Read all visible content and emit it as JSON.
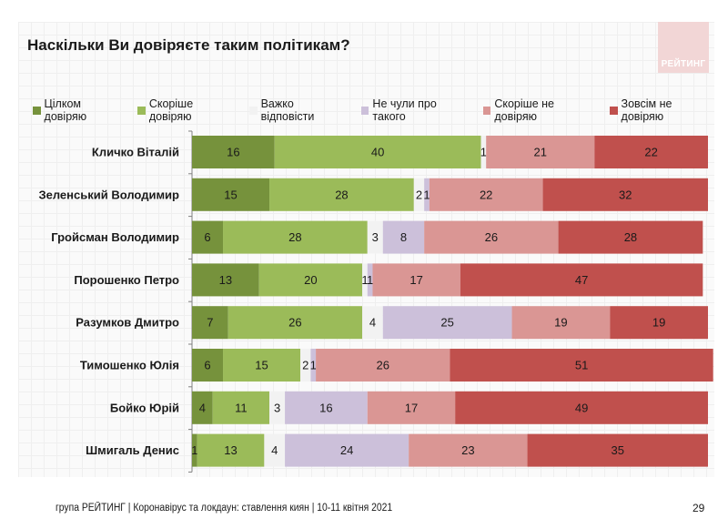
{
  "logo": {
    "text": "РЕЙТИНГ"
  },
  "footer": {
    "text": "група РЕЙТИНГ  | Коронавірус та локдаун: ставлення киян  | 10-11 квітня 2021",
    "page_number": "29"
  },
  "chart_data": {
    "type": "bar",
    "orientation": "horizontal",
    "stacked": true,
    "title": "Наскільки Ви довіряєте таким політикам?",
    "xlabel": "",
    "ylabel": "",
    "xlim": [
      0,
      100
    ],
    "unit": "%",
    "grid": false,
    "legend_position": "top",
    "categories": [
      "Кличко Віталій",
      "Зеленський Володимир",
      "Гройсман Володимир",
      "Порошенко Петро",
      "Разумков Дмитро",
      "Тимошенко Юлія",
      "Бойко Юрій",
      "Шмигаль Денис"
    ],
    "series": [
      {
        "name": "Цілком довіряю",
        "color": "#76923c",
        "values": [
          16,
          15,
          6,
          13,
          7,
          6,
          4,
          1
        ]
      },
      {
        "name": "Скоріше довіряю",
        "color": "#9bbb59",
        "values": [
          40,
          28,
          28,
          20,
          26,
          15,
          11,
          13
        ]
      },
      {
        "name": "Важко відповісти",
        "color": "#f2f2f2",
        "values": [
          1,
          2,
          3,
          1,
          4,
          2,
          3,
          4
        ]
      },
      {
        "name": "Не чули про такого",
        "color": "#ccc0da",
        "values": [
          0,
          1,
          8,
          1,
          25,
          1,
          16,
          24
        ]
      },
      {
        "name": "Скоріше не довіряю",
        "color": "#da9694",
        "values": [
          21,
          22,
          26,
          17,
          19,
          26,
          17,
          23
        ]
      },
      {
        "name": "Зовсім не довіряю",
        "color": "#c0504d",
        "values": [
          22,
          32,
          28,
          47,
          19,
          51,
          49,
          35
        ]
      }
    ]
  }
}
